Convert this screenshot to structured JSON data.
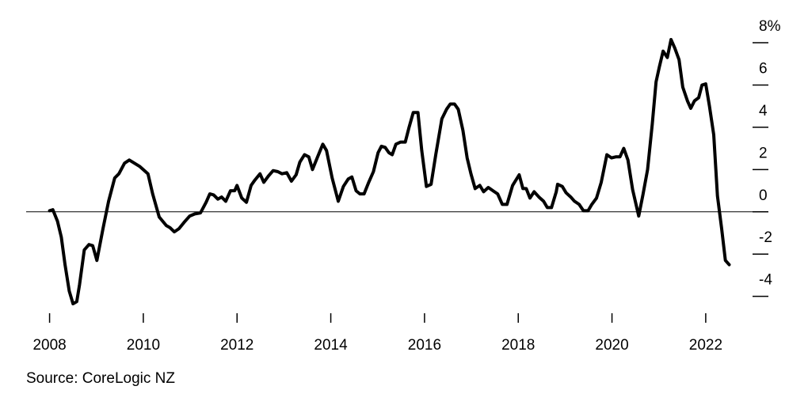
{
  "chart_data": {
    "type": "line",
    "source": "Source: CoreLogic NZ",
    "xlim": [
      2007.5,
      2022.83
    ],
    "xticks": [
      2008,
      2010,
      2012,
      2014,
      2016,
      2018,
      2020,
      2022
    ],
    "ylim": [
      -4.8,
      8.9
    ],
    "yticks": [
      {
        "value": 8,
        "label": "8%"
      },
      6,
      4,
      2,
      0,
      -2,
      -4
    ],
    "series": [
      {
        "color": "#000000",
        "x": [
          2008.0,
          2008.07,
          2008.17,
          2008.25,
          2008.33,
          2008.42,
          2008.5,
          2008.58,
          2008.64,
          2008.74,
          2008.84,
          2008.92,
          2009.01,
          2009.14,
          2009.26,
          2009.39,
          2009.48,
          2009.6,
          2009.7,
          2009.81,
          2009.92,
          2010.1,
          2010.2,
          2010.34,
          2010.49,
          2010.57,
          2010.66,
          2010.76,
          2010.87,
          2010.99,
          2011.1,
          2011.22,
          2011.34,
          2011.42,
          2011.5,
          2011.59,
          2011.67,
          2011.76,
          2011.86,
          2011.95,
          2012.0,
          2012.1,
          2012.2,
          2012.3,
          2012.38,
          2012.49,
          2012.57,
          2012.67,
          2012.77,
          2012.87,
          2012.96,
          2013.06,
          2013.16,
          2013.26,
          2013.34,
          2013.44,
          2013.53,
          2013.61,
          2013.71,
          2013.83,
          2013.91,
          2014.03,
          2014.16,
          2014.27,
          2014.37,
          2014.45,
          2014.54,
          2014.62,
          2014.71,
          2014.81,
          2014.91,
          2015.01,
          2015.08,
          2015.16,
          2015.24,
          2015.31,
          2015.39,
          2015.49,
          2015.59,
          2015.67,
          2015.76,
          2015.86,
          2015.94,
          2016.04,
          2016.14,
          2016.24,
          2016.37,
          2016.47,
          2016.55,
          2016.64,
          2016.72,
          2016.82,
          2016.91,
          2016.99,
          2017.08,
          2017.18,
          2017.26,
          2017.36,
          2017.46,
          2017.56,
          2017.66,
          2017.76,
          2017.88,
          2018.02,
          2018.1,
          2018.17,
          2018.25,
          2018.34,
          2018.44,
          2018.54,
          2018.62,
          2018.71,
          2018.81,
          2018.84,
          2018.94,
          2019.02,
          2019.12,
          2019.2,
          2019.3,
          2019.39,
          2019.49,
          2019.57,
          2019.67,
          2019.77,
          2019.89,
          2019.99,
          2020.08,
          2020.17,
          2020.25,
          2020.34,
          2020.44,
          2020.57,
          2020.66,
          2020.76,
          2020.86,
          2020.94,
          2021.01,
          2021.09,
          2021.18,
          2021.26,
          2021.34,
          2021.43,
          2021.51,
          2021.61,
          2021.68,
          2021.76,
          2021.85,
          2021.92,
          2022.0,
          2022.08,
          2022.17,
          2022.25,
          2022.34,
          2022.42,
          2022.5
        ],
        "values": [
          0.05,
          0.1,
          -0.45,
          -1.2,
          -2.5,
          -3.75,
          -4.35,
          -4.25,
          -3.45,
          -1.8,
          -1.55,
          -1.6,
          -2.3,
          -0.8,
          0.5,
          1.6,
          1.8,
          2.3,
          2.45,
          2.3,
          2.15,
          1.8,
          0.85,
          -0.25,
          -0.65,
          -0.75,
          -0.95,
          -0.8,
          -0.5,
          -0.2,
          -0.1,
          -0.05,
          0.45,
          0.85,
          0.8,
          0.6,
          0.7,
          0.5,
          1.0,
          1.0,
          1.25,
          0.65,
          0.45,
          1.25,
          1.5,
          1.8,
          1.4,
          1.7,
          1.95,
          1.9,
          1.8,
          1.85,
          1.45,
          1.75,
          2.35,
          2.7,
          2.6,
          2.0,
          2.55,
          3.2,
          2.9,
          1.6,
          0.5,
          1.2,
          1.55,
          1.65,
          1.0,
          0.85,
          0.85,
          1.4,
          1.9,
          2.8,
          3.1,
          3.05,
          2.8,
          2.7,
          3.2,
          3.3,
          3.3,
          4.0,
          4.7,
          4.7,
          2.9,
          1.2,
          1.3,
          2.7,
          4.4,
          4.85,
          5.1,
          5.1,
          4.85,
          3.85,
          2.55,
          1.8,
          1.1,
          1.25,
          0.95,
          1.15,
          1.0,
          0.85,
          0.35,
          0.35,
          1.25,
          1.75,
          1.1,
          1.1,
          0.65,
          0.95,
          0.7,
          0.5,
          0.2,
          0.2,
          0.95,
          1.3,
          1.2,
          0.9,
          0.7,
          0.5,
          0.35,
          0.05,
          0.05,
          0.35,
          0.65,
          1.4,
          2.7,
          2.55,
          2.6,
          2.6,
          3.0,
          2.45,
          1.05,
          -0.2,
          0.8,
          2.0,
          4.15,
          6.15,
          6.85,
          7.6,
          7.3,
          8.15,
          7.75,
          7.2,
          5.9,
          5.25,
          4.9,
          5.25,
          5.4,
          6.0,
          6.05,
          5.0,
          3.65,
          0.75,
          -0.8,
          -2.3,
          -2.5
        ]
      }
    ]
  }
}
